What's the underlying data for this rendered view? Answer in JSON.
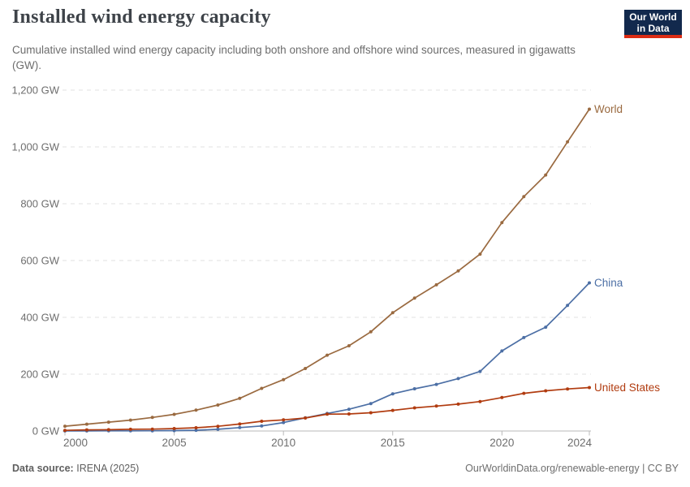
{
  "header": {
    "title": "Installed wind energy capacity",
    "subtitle": "Cumulative installed wind energy capacity including both onshore and offshore wind sources, measured in gigawatts (GW).",
    "logo": {
      "line1": "Our World",
      "line2": "in Data",
      "bg_color": "#12294d",
      "accent_color": "#dc2c14"
    }
  },
  "footer": {
    "data_source_label": "Data source:",
    "data_source_value": "IRENA (2025)",
    "attribution": "OurWorldinData.org/renewable-energy | CC BY"
  },
  "chart_data": {
    "type": "line",
    "title": "Installed wind energy capacity",
    "subtitle": "Cumulative installed wind energy capacity including both onshore and offshore wind sources, measured in gigawatts (GW).",
    "unit": "GW",
    "xlim": [
      2000,
      2024
    ],
    "ylim": [
      0,
      1200
    ],
    "grid": "horizontal-dashed",
    "legend_position": "line-end-labels",
    "x_ticks": [
      2000,
      2005,
      2010,
      2015,
      2020,
      2024
    ],
    "y_ticks": [
      {
        "value": 0,
        "label": "0 GW"
      },
      {
        "value": 200,
        "label": "200 GW"
      },
      {
        "value": 400,
        "label": "400 GW"
      },
      {
        "value": 600,
        "label": "600 GW"
      },
      {
        "value": 800,
        "label": "800 GW"
      },
      {
        "value": 1000,
        "label": "1,000 GW"
      },
      {
        "value": 1200,
        "label": "1,200 GW"
      }
    ],
    "years": [
      2000,
      2001,
      2002,
      2003,
      2004,
      2005,
      2006,
      2007,
      2008,
      2009,
      2010,
      2011,
      2012,
      2013,
      2014,
      2015,
      2016,
      2017,
      2018,
      2019,
      2020,
      2021,
      2022,
      2023,
      2024
    ],
    "series": [
      {
        "name": "World",
        "color": "#9a6a40",
        "values": [
          16.9,
          23.9,
          31.1,
          38.4,
          47.6,
          58.5,
          73.4,
          91.5,
          114.8,
          150.1,
          180.9,
          220.0,
          266.9,
          299.9,
          349.2,
          416.3,
          467.7,
          514.6,
          563.3,
          622.7,
          733.7,
          824.9,
          901.1,
          1017.8,
          1132.8
        ]
      },
      {
        "name": "China",
        "color": "#4c6fa5",
        "values": [
          0.3,
          0.4,
          0.5,
          0.6,
          0.8,
          1.3,
          2.5,
          5.9,
          11.9,
          17.6,
          29.6,
          46.3,
          61.6,
          76.6,
          96.7,
          130.8,
          148.5,
          164.0,
          184.7,
          209.7,
          281.7,
          328.9,
          365.4,
          441.9,
          521.3
        ]
      },
      {
        "name": "United States",
        "color": "#b13c10",
        "values": [
          2.4,
          3.9,
          4.5,
          5.9,
          6.5,
          8.7,
          11.3,
          16.5,
          24.7,
          34.3,
          39.1,
          45.7,
          59.1,
          60.0,
          64.2,
          72.6,
          81.3,
          87.6,
          94.7,
          103.6,
          117.7,
          132.7,
          141.3,
          147.9,
          152.9
        ]
      }
    ]
  }
}
